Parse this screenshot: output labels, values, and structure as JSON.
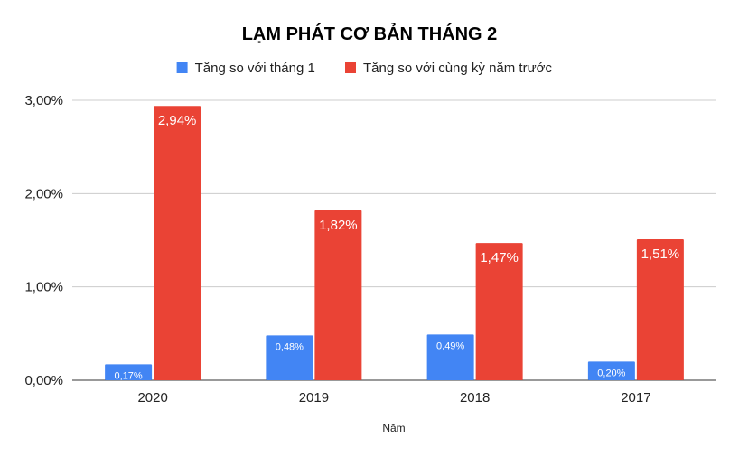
{
  "chart_data": {
    "type": "bar",
    "title": "LẠM PHÁT CƠ BẢN THÁNG 2",
    "xlabel": "Năm",
    "ylabel": "",
    "categories": [
      "2020",
      "2019",
      "2018",
      "2017"
    ],
    "ylim": [
      0,
      3
    ],
    "yticks": [
      0,
      1,
      2,
      3
    ],
    "ytick_labels": [
      "0,00%",
      "1,00%",
      "2,00%",
      "3,00%"
    ],
    "grid": true,
    "legend_position": "top",
    "series": [
      {
        "name": "Tăng so với tháng 1",
        "color": "#4285f4",
        "values": [
          0.17,
          0.48,
          0.49,
          0.2
        ],
        "labels": [
          "0,17%",
          "0,48%",
          "0,49%",
          "0,20%"
        ]
      },
      {
        "name": "Tăng so với cùng kỳ năm trước",
        "color": "#ea4335",
        "values": [
          2.94,
          1.82,
          1.47,
          1.51
        ],
        "labels": [
          "2,94%",
          "1,82%",
          "1,47%",
          "1,51%"
        ]
      }
    ]
  }
}
